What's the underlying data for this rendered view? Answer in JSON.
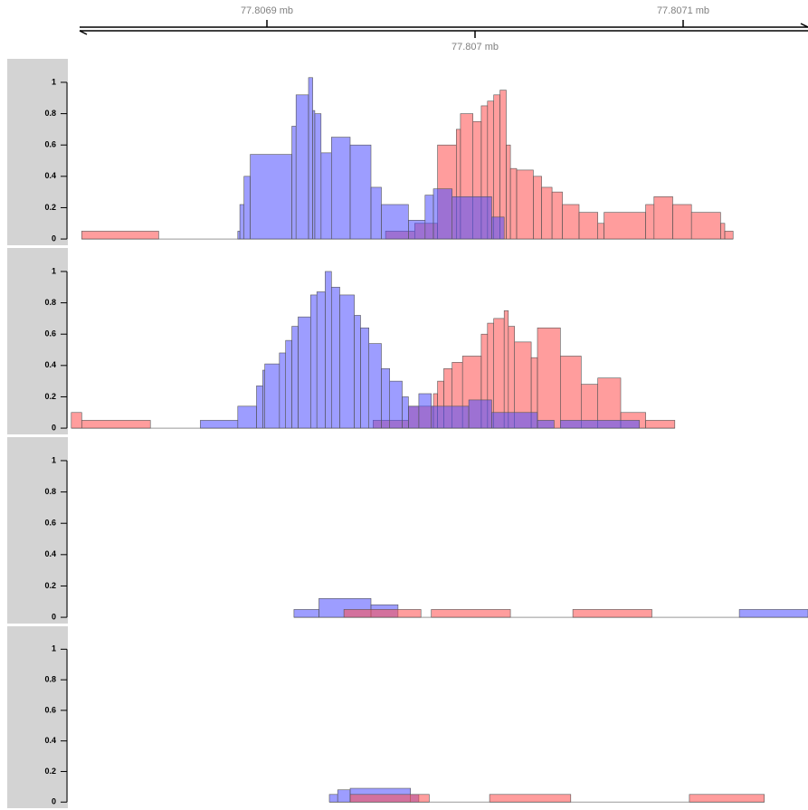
{
  "genome_axis": {
    "xlim": [
      77.80681,
      77.80716
    ],
    "xticks": [
      {
        "value": 77.8069,
        "label": "77.8069 mb"
      },
      {
        "value": 77.807,
        "label": "77.807 mb"
      },
      {
        "value": 77.8071,
        "label": "77.8071 mb"
      }
    ]
  },
  "chart_data": [
    {
      "type": "range-bar",
      "ylim": [
        -0.04,
        1.15
      ],
      "yticks": [
        0,
        0.2,
        0.4,
        0.6,
        0.8,
        1
      ],
      "opacity": 0.55,
      "series": [
        {
          "color": "#ff4d4d",
          "starts": [
            77.806811,
            77.806957,
            77.806971,
            77.806982,
            77.806991,
            77.806993,
            77.806999,
            77.807003,
            77.807006,
            77.807009,
            77.807012,
            77.807015,
            77.807017,
            77.80702,
            77.807028,
            77.807032,
            77.807037,
            77.807042,
            77.80705,
            77.807059,
            77.807062,
            77.807082,
            77.807086,
            77.807095,
            77.807104,
            77.807118,
            77.80712
          ],
          "ends": [
            77.806848,
            77.806971,
            77.806982,
            77.806991,
            77.806993,
            77.806999,
            77.807003,
            77.807006,
            77.807009,
            77.807012,
            77.807015,
            77.807017,
            77.80702,
            77.807028,
            77.807032,
            77.807037,
            77.807042,
            77.80705,
            77.807059,
            77.807062,
            77.807082,
            77.807086,
            77.807095,
            77.807104,
            77.807118,
            77.80712,
            77.807124
          ],
          "values": [
            0.05,
            0.05,
            0.1,
            0.6,
            0.7,
            0.8,
            0.75,
            0.85,
            0.88,
            0.92,
            0.95,
            0.6,
            0.45,
            0.44,
            0.4,
            0.33,
            0.3,
            0.22,
            0.17,
            0.1,
            0.17,
            0.22,
            0.27,
            0.22,
            0.17,
            0.1,
            0.05
          ]
        },
        {
          "color": "#4d4dff",
          "starts": [
            77.806886,
            77.806887,
            77.806889,
            77.806892,
            77.806912,
            77.806914,
            77.80692,
            77.806922,
            77.806923,
            77.806926,
            77.806931,
            77.80694,
            77.80695,
            77.806955,
            77.806968,
            77.806976,
            77.80698,
            77.806989,
            77.807008
          ],
          "ends": [
            77.806887,
            77.806889,
            77.806892,
            77.806912,
            77.806914,
            77.80692,
            77.806922,
            77.806923,
            77.806926,
            77.806931,
            77.80694,
            77.80695,
            77.806955,
            77.806968,
            77.806976,
            77.80698,
            77.806989,
            77.807008,
            77.807014
          ],
          "values": [
            0.05,
            0.22,
            0.4,
            0.54,
            0.72,
            0.92,
            1.03,
            0.82,
            0.8,
            0.55,
            0.65,
            0.6,
            0.33,
            0.22,
            0.12,
            0.28,
            0.32,
            0.27,
            0.14
          ]
        }
      ]
    },
    {
      "type": "range-bar",
      "ylim": [
        -0.04,
        1.15
      ],
      "yticks": [
        0,
        0.2,
        0.4,
        0.6,
        0.8,
        1
      ],
      "opacity": 0.55,
      "series": [
        {
          "color": "#ff4d4d",
          "starts": [
            77.806806,
            77.806811,
            77.806951,
            77.806968,
            77.80698,
            77.806982,
            77.806985,
            77.806989,
            77.806994,
            77.807003,
            77.807006,
            77.807009,
            77.807014,
            77.807016,
            77.807019,
            77.807027,
            77.80703,
            77.807041,
            77.807051,
            77.807059,
            77.80707,
            77.807082
          ],
          "ends": [
            77.806811,
            77.806844,
            77.806968,
            77.80698,
            77.806982,
            77.806985,
            77.806989,
            77.806994,
            77.807003,
            77.807006,
            77.807009,
            77.807014,
            77.807016,
            77.807019,
            77.807027,
            77.80703,
            77.807041,
            77.807051,
            77.807059,
            77.80707,
            77.807082,
            77.807096
          ],
          "values": [
            0.1,
            0.05,
            0.05,
            0.14,
            0.22,
            0.3,
            0.38,
            0.42,
            0.46,
            0.6,
            0.67,
            0.7,
            0.75,
            0.65,
            0.55,
            0.45,
            0.64,
            0.46,
            0.28,
            0.32,
            0.1,
            0.05
          ]
        },
        {
          "color": "#4d4dff",
          "starts": [
            77.806868,
            77.806886,
            77.806895,
            77.806898,
            77.806899,
            77.806906,
            77.806909,
            77.806912,
            77.806915,
            77.806921,
            77.806924,
            77.806928,
            77.806931,
            77.806935,
            77.806942,
            77.806945,
            77.806949,
            77.806955,
            77.806959,
            77.806965,
            77.806968,
            77.806973,
            77.806979,
            77.806997,
            77.807008,
            77.80703,
            77.807041
          ],
          "ends": [
            77.806886,
            77.806895,
            77.806898,
            77.806899,
            77.806906,
            77.806909,
            77.806912,
            77.806915,
            77.806921,
            77.806924,
            77.806928,
            77.806931,
            77.806935,
            77.806942,
            77.806945,
            77.806949,
            77.806955,
            77.806959,
            77.806965,
            77.806968,
            77.806973,
            77.806979,
            77.806997,
            77.807008,
            77.80703,
            77.807038,
            77.807079
          ],
          "values": [
            0.05,
            0.14,
            0.27,
            0.37,
            0.41,
            0.48,
            0.56,
            0.65,
            0.71,
            0.85,
            0.87,
            1.0,
            0.9,
            0.85,
            0.72,
            0.64,
            0.54,
            0.38,
            0.3,
            0.2,
            0.14,
            0.22,
            0.14,
            0.18,
            0.1,
            0.05,
            0.05
          ]
        }
      ]
    },
    {
      "type": "range-bar",
      "ylim": [
        -0.04,
        1.15
      ],
      "yticks": [
        0,
        0.2,
        0.4,
        0.6,
        0.8,
        1
      ],
      "opacity": 0.55,
      "series": [
        {
          "color": "#4d4dff",
          "starts": [
            77.806913,
            77.806925,
            77.80695,
            77.807127
          ],
          "ends": [
            77.806925,
            77.80695,
            77.806963,
            77.80716
          ],
          "values": [
            0.05,
            0.12,
            0.08,
            0.05
          ]
        },
        {
          "color": "#ff4d4d",
          "starts": [
            77.806937,
            77.806979,
            77.807047
          ],
          "ends": [
            77.806974,
            77.807017,
            77.807085
          ],
          "values": [
            0.05,
            0.05,
            0.05
          ]
        }
      ]
    },
    {
      "type": "range-bar",
      "ylim": [
        -0.04,
        1.15
      ],
      "yticks": [
        0,
        0.2,
        0.4,
        0.6,
        0.8,
        1
      ],
      "opacity": 0.55,
      "series": [
        {
          "color": "#4d4dff",
          "starts": [
            77.80693,
            77.806934,
            77.80694,
            77.806969
          ],
          "ends": [
            77.806934,
            77.80694,
            77.806969,
            77.806973
          ],
          "values": [
            0.05,
            0.08,
            0.09,
            0.05
          ]
        },
        {
          "color": "#ff4d4d",
          "starts": [
            77.80694,
            77.807007,
            77.807103
          ],
          "ends": [
            77.806978,
            77.807046,
            77.807139
          ],
          "values": [
            0.05,
            0.05,
            0.05
          ]
        }
      ]
    }
  ]
}
